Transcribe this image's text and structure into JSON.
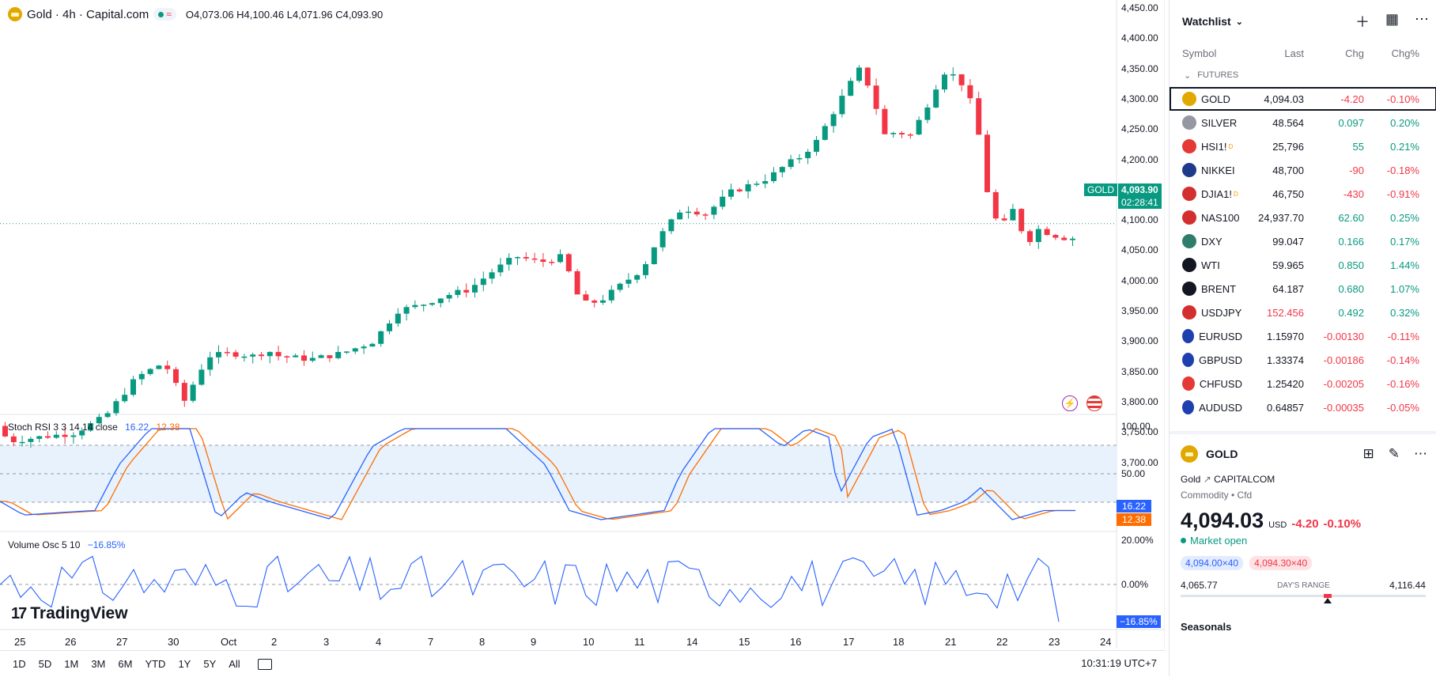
{
  "header": {
    "symbol_title": "Gold · 4h · Capital.com",
    "ohlc": "O4,073.06 H4,100.46 L4,071.96 C4,093.90"
  },
  "price_axis": [
    "4,450.00",
    "4,400.00",
    "4,350.00",
    "4,300.00",
    "4,250.00",
    "4,200.00",
    "4,150.00",
    "4,100.00",
    "4,050.00",
    "4,000.00",
    "3,950.00",
    "3,900.00",
    "3,850.00",
    "3,800.00",
    "3,750.00",
    "3,700.00"
  ],
  "current_price": {
    "symbol": "GOLD",
    "price": "4,093.90",
    "countdown": "02:28:41"
  },
  "stoch": {
    "label": "Stoch RSI 3 3 14 14 close",
    "k_value": "16.22",
    "d_value": "12.38",
    "axis": [
      "100.00",
      "50.00"
    ]
  },
  "volosc": {
    "label": "Volume Osc 5 10",
    "value": "−16.85%",
    "axis": [
      "20.00%",
      "0.00%"
    ],
    "tag": "−16.85%"
  },
  "logo": "TradingView",
  "time_axis": [
    "25",
    "26",
    "27",
    "30",
    "Oct",
    "2",
    "3",
    "4",
    "7",
    "8",
    "9",
    "10",
    "11",
    "14",
    "15",
    "16",
    "17",
    "18",
    "21",
    "22",
    "23",
    "24"
  ],
  "bottom_bar": {
    "ranges": [
      "1D",
      "5D",
      "1M",
      "3M",
      "6M",
      "YTD",
      "1Y",
      "5Y",
      "All"
    ],
    "clock": "10:31:19 UTC+7"
  },
  "watchlist": {
    "title": "Watchlist",
    "columns": {
      "symbol": "Symbol",
      "last": "Last",
      "chg": "Chg",
      "pct": "Chg%"
    },
    "section": "FUTURES",
    "rows": [
      {
        "sym": "GOLD",
        "last": "4,094.03",
        "chg": "-4.20",
        "pct": "-0.10%",
        "color": "#e0a800",
        "icon": "gold-icon"
      },
      {
        "sym": "SILVER",
        "last": "48.564",
        "chg": "0.097",
        "pct": "0.20%",
        "color": "#9598a1",
        "icon": "silver-icon"
      },
      {
        "sym": "HSI1!",
        "last": "25,796",
        "chg": "55",
        "pct": "0.21%",
        "color": "#e53935",
        "icon": "hsi-icon"
      },
      {
        "sym": "NIKKEI",
        "last": "48,700",
        "chg": "-90",
        "pct": "-0.18%",
        "color": "#1e3a8a",
        "icon": "nikkei-icon"
      },
      {
        "sym": "DJIA1!",
        "last": "46,750",
        "chg": "-430",
        "pct": "-0.91%",
        "color": "#d32f2f",
        "icon": "us-flag-icon"
      },
      {
        "sym": "NAS100",
        "last": "24,937.70",
        "chg": "62.60",
        "pct": "0.25%",
        "color": "#d32f2f",
        "icon": "us-flag-icon"
      },
      {
        "sym": "DXY",
        "last": "99.047",
        "chg": "0.166",
        "pct": "0.17%",
        "color": "#2e7d6b",
        "icon": "dollar-icon"
      },
      {
        "sym": "WTI",
        "last": "59.965",
        "chg": "0.850",
        "pct": "1.44%",
        "color": "#131722",
        "icon": "oil-drop-icon"
      },
      {
        "sym": "BRENT",
        "last": "64.187",
        "chg": "0.680",
        "pct": "1.07%",
        "color": "#131722",
        "icon": "oil-drop-icon"
      },
      {
        "sym": "USDJPY",
        "last": "152.456",
        "chg": "0.492",
        "pct": "0.32%",
        "color": "#d32f2f",
        "icon": "usdjpy-flag-icon"
      },
      {
        "sym": "EURUSD",
        "last": "1.15970",
        "chg": "-0.00130",
        "pct": "-0.11%",
        "color": "#1e40af",
        "icon": "eurusd-flag-icon"
      },
      {
        "sym": "GBPUSD",
        "last": "1.33374",
        "chg": "-0.00186",
        "pct": "-0.14%",
        "color": "#1e40af",
        "icon": "gbpusd-flag-icon"
      },
      {
        "sym": "CHFUSD",
        "last": "1.25420",
        "chg": "-0.00205",
        "pct": "-0.16%",
        "color": "#e53935",
        "icon": "chfusd-flag-icon"
      },
      {
        "sym": "AUDUSD",
        "last": "0.64857",
        "chg": "-0.00035",
        "pct": "-0.05%",
        "color": "#1e40af",
        "icon": "audusd-flag-icon"
      }
    ]
  },
  "detail": {
    "symbol": "GOLD",
    "name": "Gold",
    "exchange": "CAPITALCOM",
    "type": "Commodity • Cfd",
    "price": "4,094.03",
    "currency": "USD",
    "chg": "-4.20",
    "pct": "-0.10%",
    "status": "Market open",
    "bid": "4,094.00×40",
    "ask": "4,094.30×40",
    "low": "4,065.77",
    "high": "4,116.44",
    "range_label": "DAY'S RANGE",
    "range_position": 0.6,
    "seasonals": "Seasonals"
  },
  "colors": {
    "up": "#089981",
    "down": "#f23645",
    "stoch_k": "#2962ff",
    "stoch_d": "#ff6d00"
  }
}
